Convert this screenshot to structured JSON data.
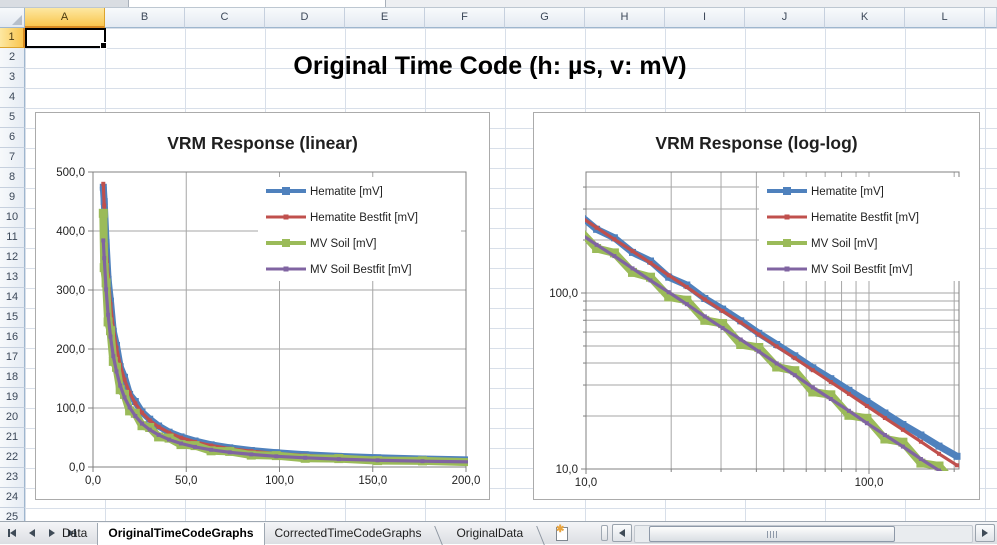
{
  "spreadsheet": {
    "column_headers": [
      "A",
      "B",
      "C",
      "D",
      "E",
      "F",
      "G",
      "H",
      "I",
      "J",
      "K",
      "L"
    ],
    "row_count": 25,
    "selected_cell": "A1",
    "selected_column": "A",
    "selected_row": 1
  },
  "page_title": "Original Time Code (h: µs, v: mV)",
  "sheet_tabs": [
    {
      "label": "Data",
      "active": false
    },
    {
      "label": "OriginalTimeCodeGraphs",
      "active": true
    },
    {
      "label": "CorrectedTimeCodeGraphs",
      "active": false
    },
    {
      "label": "OriginalData",
      "active": false
    }
  ],
  "colors": {
    "series_blue": "#4F81BD",
    "series_red": "#C0504D",
    "series_green": "#9BBB59",
    "series_purple": "#8064A2",
    "chart_grid": "#A6A6A6",
    "chart_axis": "#808080",
    "selected_header": "#F9C54E"
  },
  "chart_data": {
    "series": {
      "hematite": {
        "name": "Hematite [mV]",
        "color": "#4F81BD",
        "kind": "data",
        "line_width": 7,
        "marker_size": 7,
        "points": [
          [
            5.5,
            474
          ],
          [
            6,
            450
          ],
          [
            7,
            380
          ],
          [
            8.1,
            318
          ],
          [
            9.4,
            281
          ],
          [
            10.9,
            230
          ],
          [
            12.6,
            206
          ],
          [
            14.6,
            170
          ],
          [
            16.9,
            152
          ],
          [
            19.6,
            123
          ],
          [
            22.7,
            111
          ],
          [
            26.3,
            93
          ],
          [
            30.4,
            81
          ],
          [
            35.2,
            69.5
          ],
          [
            40.8,
            59
          ],
          [
            47.2,
            51
          ],
          [
            54.7,
            44
          ],
          [
            63.3,
            37.6
          ],
          [
            73.3,
            32.6
          ],
          [
            84.9,
            28
          ],
          [
            98.3,
            24.2
          ],
          [
            113.8,
            20.8
          ],
          [
            131.8,
            17.9
          ],
          [
            152.6,
            15.6
          ],
          [
            176.7,
            13.5
          ],
          [
            204.6,
            11.8
          ]
        ]
      },
      "hematite_bestfit": {
        "name": "Hematite Bestfit [mV]",
        "color": "#C0504D",
        "kind": "fit",
        "line_width": 3.2,
        "marker_size": 4,
        "points": [
          [
            5.5,
            480
          ],
          [
            6,
            443
          ],
          [
            7,
            376
          ],
          [
            8.1,
            323
          ],
          [
            9.4,
            276
          ],
          [
            10.9,
            235
          ],
          [
            12.6,
            202
          ],
          [
            14.6,
            173
          ],
          [
            16.9,
            148
          ],
          [
            19.6,
            126
          ],
          [
            22.7,
            108
          ],
          [
            26.3,
            92
          ],
          [
            30.4,
            79
          ],
          [
            35.2,
            68
          ],
          [
            40.8,
            58.1
          ],
          [
            47.2,
            49.7
          ],
          [
            54.7,
            42.6
          ],
          [
            63.3,
            36.4
          ],
          [
            73.3,
            31.2
          ],
          [
            84.9,
            26.7
          ],
          [
            98.3,
            22.8
          ],
          [
            113.8,
            19.5
          ],
          [
            131.8,
            16.7
          ],
          [
            152.6,
            14.3
          ],
          [
            176.7,
            12.2
          ],
          [
            204.6,
            10.5
          ]
        ]
      },
      "mv_soil": {
        "name": "MV Soil  [mV]",
        "color": "#9BBB59",
        "kind": "data",
        "line_width": 8,
        "marker_size": 9,
        "points": [
          [
            5.5,
            430
          ],
          [
            6,
            338
          ],
          [
            7,
            312
          ],
          [
            8.1,
            246
          ],
          [
            9.4,
            231
          ],
          [
            10.9,
            179
          ],
          [
            12.6,
            169
          ],
          [
            14.6,
            131
          ],
          [
            16.9,
            123
          ],
          [
            19.6,
            95
          ],
          [
            22.7,
            91
          ],
          [
            26.3,
            70
          ],
          [
            30.4,
            67
          ],
          [
            35.2,
            51
          ],
          [
            40.8,
            49
          ],
          [
            47.2,
            38
          ],
          [
            54.7,
            36.2
          ],
          [
            63.3,
            27.4
          ],
          [
            73.3,
            26.4
          ],
          [
            84.9,
            20.2
          ],
          [
            98.3,
            19.4
          ],
          [
            113.8,
            14.8
          ],
          [
            131.8,
            14.2
          ],
          [
            152.6,
            10.8
          ],
          [
            176.7,
            10.4
          ],
          [
            204.6,
            8.0
          ]
        ]
      },
      "mv_soil_bestfit": {
        "name": "MV Soil Bestfit [mV]",
        "color": "#8064A2",
        "kind": "fit",
        "line_width": 3.2,
        "marker_size": 4,
        "points": [
          [
            5.5,
            384
          ],
          [
            6,
            354
          ],
          [
            7,
            301
          ],
          [
            8.1,
            258
          ],
          [
            9.4,
            221
          ],
          [
            10.9,
            188
          ],
          [
            12.6,
            162
          ],
          [
            14.6,
            138
          ],
          [
            16.9,
            118
          ],
          [
            19.6,
            101
          ],
          [
            22.7,
            86.4
          ],
          [
            26.3,
            73.6
          ],
          [
            30.4,
            63.2
          ],
          [
            35.2,
            54.4
          ],
          [
            40.8,
            46.5
          ],
          [
            47.2,
            39.8
          ],
          [
            54.7,
            34.1
          ],
          [
            63.3,
            29.1
          ],
          [
            73.3,
            25
          ],
          [
            84.9,
            21.4
          ],
          [
            98.3,
            18.2
          ],
          [
            113.8,
            15.6
          ],
          [
            131.8,
            13.4
          ],
          [
            152.6,
            11.4
          ],
          [
            176.7,
            9.8
          ],
          [
            204.6,
            8.4
          ]
        ]
      }
    },
    "charts": [
      {
        "id": "linear",
        "type": "line",
        "title": "VRM Response (linear)",
        "x_scale": "linear",
        "y_scale": "linear",
        "xlim": [
          0,
          200
        ],
        "ylim": [
          0,
          500
        ],
        "grid": true,
        "legend_position": "inside-top-right",
        "x_ticks": [
          {
            "v": 0,
            "label": "0,0"
          },
          {
            "v": 50,
            "label": "50,0"
          },
          {
            "v": 100,
            "label": "100,0"
          },
          {
            "v": 150,
            "label": "150,0"
          },
          {
            "v": 200,
            "label": "200,0"
          }
        ],
        "y_ticks": [
          {
            "v": 0,
            "label": "0,0"
          },
          {
            "v": 100,
            "label": "100,0"
          },
          {
            "v": 200,
            "label": "200,0"
          },
          {
            "v": 300,
            "label": "300,0"
          },
          {
            "v": 400,
            "label": "400,0"
          },
          {
            "v": 500,
            "label": "500,0"
          }
        ],
        "x_minor": [],
        "y_minor": [],
        "series_refs": [
          "hematite",
          "hematite_bestfit",
          "mv_soil",
          "mv_soil_bestfit"
        ]
      },
      {
        "id": "loglog",
        "type": "line",
        "title": "VRM Response (log-log)",
        "x_scale": "log",
        "y_scale": "log",
        "xlim": [
          10,
          208
        ],
        "ylim": [
          10,
          487
        ],
        "grid": true,
        "legend_position": "inside-top-right",
        "x_ticks": [
          {
            "v": 10,
            "label": "10,0"
          },
          {
            "v": 100,
            "label": "100,0"
          }
        ],
        "y_ticks": [
          {
            "v": 10,
            "label": "10,0"
          },
          {
            "v": 100,
            "label": "100,0"
          }
        ],
        "x_minor": [
          20,
          30,
          40,
          50,
          60,
          70,
          80,
          90,
          200
        ],
        "y_minor": [
          20,
          30,
          40,
          50,
          60,
          70,
          80,
          90,
          200,
          300,
          400
        ],
        "series_refs": [
          "hematite",
          "hematite_bestfit",
          "mv_soil",
          "mv_soil_bestfit"
        ]
      }
    ]
  }
}
